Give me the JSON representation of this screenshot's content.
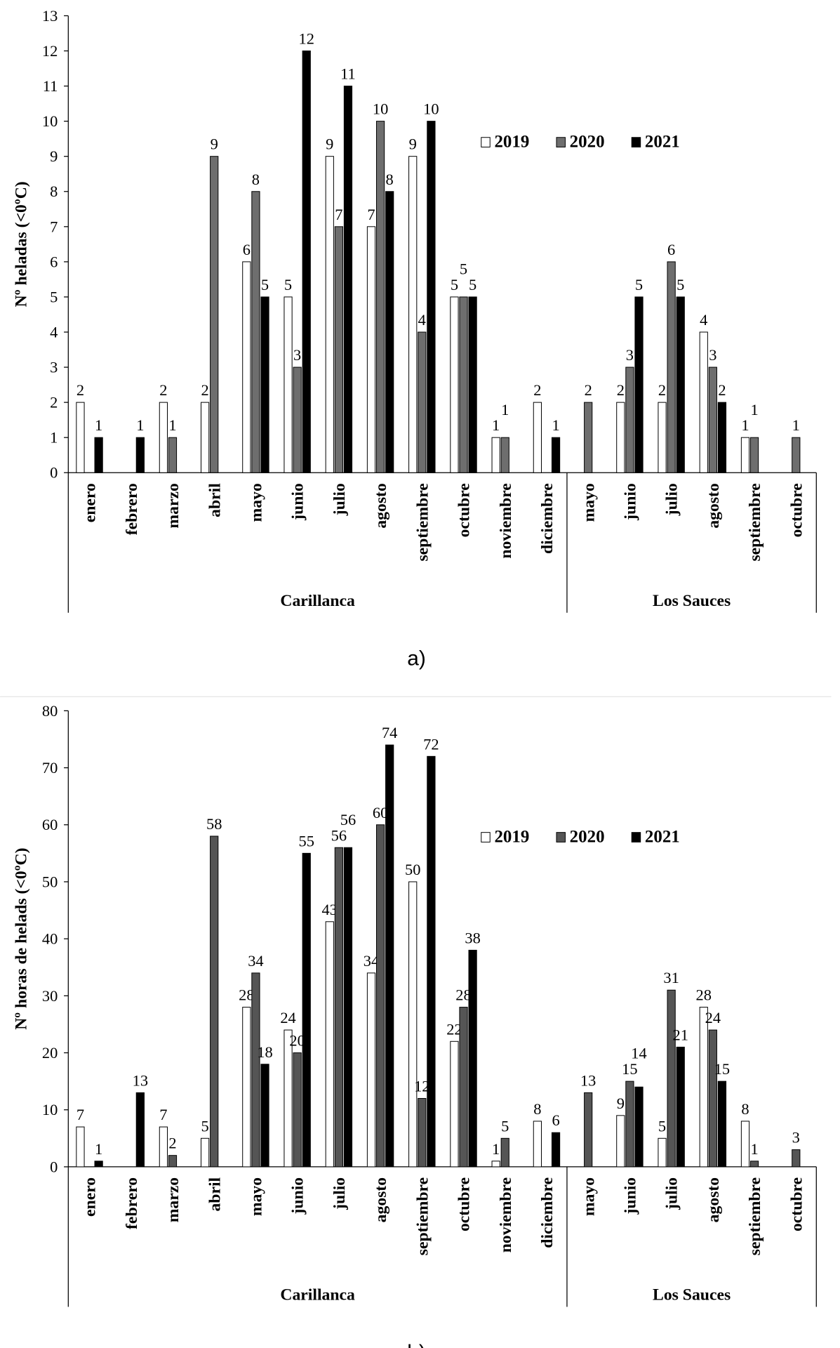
{
  "chart_data": [
    {
      "type": "bar",
      "caption": "a)",
      "ylabel": "Nº heladas (<0ºC)",
      "ylim": [
        0,
        13
      ],
      "yticks": [
        0,
        1,
        2,
        3,
        4,
        5,
        6,
        7,
        8,
        9,
        10,
        11,
        12,
        13
      ],
      "groups": [
        {
          "name": "Carillanca",
          "categories": [
            "enero",
            "febrero",
            "marzo",
            "abril",
            "mayo",
            "junio",
            "julio",
            "agosto",
            "septiembre",
            "octubre",
            "noviembre",
            "diciembre"
          ]
        },
        {
          "name": "Los Sauces",
          "categories": [
            "mayo",
            "junio",
            "julio",
            "agosto",
            "septiembre",
            "octubre"
          ]
        }
      ],
      "legend_position": "top-right",
      "series": [
        {
          "name": "2019",
          "color": "#ffffff",
          "values": [
            2,
            null,
            2,
            2,
            6,
            5,
            9,
            7,
            9,
            5,
            1,
            2,
            null,
            2,
            2,
            4,
            1,
            null
          ]
        },
        {
          "name": "2020",
          "color": "#6e6e6e",
          "values": [
            null,
            null,
            1,
            9,
            8,
            3,
            7,
            10,
            4,
            5,
            1,
            null,
            2,
            3,
            6,
            3,
            1,
            1
          ]
        },
        {
          "name": "2021",
          "color": "#000000",
          "values": [
            1,
            1,
            null,
            null,
            5,
            12,
            11,
            8,
            10,
            5,
            null,
            1,
            null,
            5,
            5,
            2,
            null,
            null
          ]
        }
      ]
    },
    {
      "type": "bar",
      "caption": "b)",
      "ylabel": "Nº horas de helads (<0ºC)",
      "ylim": [
        0,
        80
      ],
      "yticks": [
        0,
        10,
        20,
        30,
        40,
        50,
        60,
        70,
        80
      ],
      "groups": [
        {
          "name": "Carillanca",
          "categories": [
            "enero",
            "febrero",
            "marzo",
            "abril",
            "mayo",
            "junio",
            "julio",
            "agosto",
            "septiembre",
            "octubre",
            "noviembre",
            "diciembre"
          ]
        },
        {
          "name": "Los Sauces",
          "categories": [
            "mayo",
            "junio",
            "julio",
            "agosto",
            "septiembre",
            "octubre"
          ]
        }
      ],
      "legend_position": "top-right",
      "series": [
        {
          "name": "2019",
          "color": "#ffffff",
          "values": [
            7,
            null,
            7,
            5,
            28,
            24,
            43,
            34,
            50,
            22,
            1,
            8,
            null,
            9,
            5,
            28,
            8,
            null
          ]
        },
        {
          "name": "2020",
          "color": "#555555",
          "values": [
            null,
            null,
            2,
            58,
            34,
            20,
            56,
            60,
            12,
            28,
            5,
            null,
            13,
            15,
            31,
            24,
            1,
            3
          ]
        },
        {
          "name": "2021",
          "color": "#000000",
          "values": [
            1,
            13,
            null,
            null,
            18,
            55,
            56,
            74,
            72,
            38,
            null,
            6,
            null,
            14,
            21,
            15,
            null,
            null
          ]
        }
      ]
    }
  ]
}
